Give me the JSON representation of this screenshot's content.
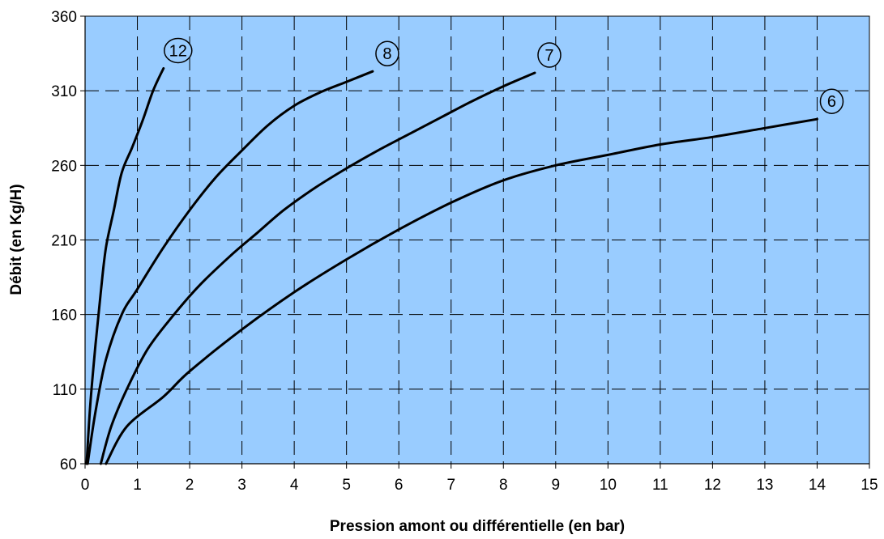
{
  "chart_data": {
    "type": "line",
    "xlabel": "Pression amont ou différentielle (en bar)",
    "ylabel": "Débit (en Kg/H)",
    "xlim": [
      0,
      15
    ],
    "ylim": [
      60,
      360
    ],
    "xticks": [
      "0",
      "1",
      "2",
      "3",
      "4",
      "5",
      "6",
      "7",
      "8",
      "9",
      "10",
      "11",
      "12",
      "13",
      "14",
      "15"
    ],
    "yticks": [
      "60",
      "110",
      "160",
      "210",
      "260",
      "310",
      "360"
    ],
    "grid": true,
    "plot_background": "#99ccff",
    "line_color": "#000000",
    "series": [
      {
        "name": "12",
        "points": [
          [
            0.03,
            60
          ],
          [
            0.1,
            100
          ],
          [
            0.2,
            140
          ],
          [
            0.3,
            175
          ],
          [
            0.4,
            205
          ],
          [
            0.55,
            230
          ],
          [
            0.7,
            255
          ],
          [
            0.9,
            272
          ],
          [
            1.1,
            290
          ],
          [
            1.3,
            310
          ],
          [
            1.5,
            325
          ]
        ]
      },
      {
        "name": "8",
        "points": [
          [
            0.05,
            60
          ],
          [
            0.2,
            95
          ],
          [
            0.4,
            130
          ],
          [
            0.7,
            160
          ],
          [
            1.0,
            177
          ],
          [
            1.5,
            205
          ],
          [
            2.0,
            230
          ],
          [
            2.5,
            252
          ],
          [
            3.0,
            270
          ],
          [
            3.5,
            287
          ],
          [
            4.0,
            300
          ],
          [
            4.5,
            309
          ],
          [
            5.0,
            316
          ],
          [
            5.5,
            323
          ]
        ]
      },
      {
        "name": "7",
        "points": [
          [
            0.3,
            60
          ],
          [
            0.5,
            85
          ],
          [
            0.8,
            110
          ],
          [
            1.2,
            137
          ],
          [
            1.7,
            160
          ],
          [
            2.2,
            180
          ],
          [
            2.8,
            200
          ],
          [
            3.3,
            215
          ],
          [
            3.8,
            230
          ],
          [
            4.4,
            245
          ],
          [
            5.0,
            258
          ],
          [
            5.6,
            270
          ],
          [
            6.2,
            281
          ],
          [
            6.8,
            292
          ],
          [
            7.4,
            303
          ],
          [
            8.0,
            313
          ],
          [
            8.6,
            322
          ]
        ]
      },
      {
        "name": "6",
        "points": [
          [
            0.4,
            60
          ],
          [
            0.8,
            85
          ],
          [
            1.5,
            105
          ],
          [
            2.0,
            122
          ],
          [
            3.0,
            150
          ],
          [
            4.0,
            175
          ],
          [
            5.0,
            197
          ],
          [
            6.0,
            217
          ],
          [
            7.0,
            235
          ],
          [
            8.0,
            250
          ],
          [
            9.0,
            260
          ],
          [
            10.0,
            267
          ],
          [
            11.0,
            274
          ],
          [
            12.0,
            279
          ],
          [
            13.0,
            285
          ],
          [
            14.0,
            291
          ]
        ]
      }
    ]
  }
}
